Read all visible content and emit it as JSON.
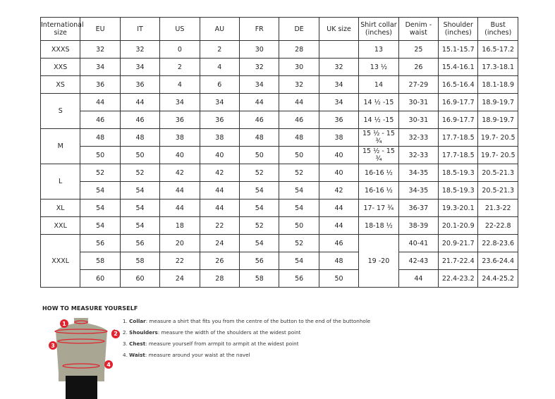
{
  "headers": [
    "International size",
    "EU",
    "IT",
    "US",
    "AU",
    "FR",
    "DE",
    "UK size",
    "Shirt collar (inches)",
    "Denim - waist",
    "Shoulder (inches)",
    "Bust (inches)"
  ],
  "groups": [
    {
      "size": "XXXS",
      "rows": [
        [
          "32",
          "32",
          "0",
          "2",
          "30",
          "28",
          "",
          "13",
          "25",
          "15.1-15.7",
          "16.5-17.2"
        ]
      ]
    },
    {
      "size": "XXS",
      "rows": [
        [
          "34",
          "34",
          "2",
          "4",
          "32",
          "30",
          "32",
          "13 ½",
          "26",
          "15.4-16.1",
          "17.3-18.1"
        ]
      ]
    },
    {
      "size": "XS",
      "rows": [
        [
          "36",
          "36",
          "4",
          "6",
          "34",
          "32",
          "34",
          "14",
          "27-29",
          "16.5-16.4",
          "18.1-18.9"
        ]
      ]
    },
    {
      "size": "S",
      "rows": [
        [
          "44",
          "44",
          "34",
          "34",
          "44",
          "44",
          "34",
          "14 ½ -15",
          "30-31",
          "16.9-17.7",
          "18.9-19.7"
        ],
        [
          "46",
          "46",
          "36",
          "36",
          "46",
          "46",
          "36",
          "14 ½ -15",
          "30-31",
          "16.9-17.7",
          "18.9-19.7"
        ]
      ]
    },
    {
      "size": "M",
      "rows": [
        [
          "48",
          "48",
          "38",
          "38",
          "48",
          "48",
          "38",
          "15 ½ - 15 ¾",
          "32-33",
          "17.7-18.5",
          "19.7- 20.5"
        ],
        [
          "50",
          "50",
          "40",
          "40",
          "50",
          "50",
          "40",
          "15 ½ - 15 ¾",
          "32-33",
          "17.7-18.5",
          "19.7- 20.5"
        ]
      ]
    },
    {
      "size": "L",
      "rows": [
        [
          "52",
          "52",
          "42",
          "42",
          "52",
          "52",
          "40",
          "16-16 ½",
          "34-35",
          "18.5-19.3",
          "20.5-21.3"
        ],
        [
          "54",
          "54",
          "44",
          "44",
          "54",
          "54",
          "42",
          "16-16 ½",
          "34-35",
          "18.5-19.3",
          "20.5-21.3"
        ]
      ]
    },
    {
      "size": "XL",
      "rows": [
        [
          "54",
          "54",
          "44",
          "44",
          "54",
          "54",
          "44",
          "17- 17 ¾",
          "36-37",
          "19.3-20.1",
          "21.3-22"
        ]
      ]
    },
    {
      "size": "XXL",
      "rows": [
        [
          "54",
          "54",
          "18",
          "22",
          "52",
          "50",
          "44",
          "18-18 ½",
          "38-39",
          "20.1-20.9",
          "22-22.8"
        ]
      ]
    },
    {
      "size": "XXXL",
      "shared_collar": "19 -20",
      "rows": [
        [
          "56",
          "56",
          "20",
          "24",
          "54",
          "52",
          "46",
          "",
          "40-41",
          "20.9-21.7",
          "22.8-23.6"
        ],
        [
          "58",
          "58",
          "22",
          "26",
          "56",
          "54",
          "48",
          "",
          "42-43",
          "21.7-22.4",
          "23.6-24.4"
        ],
        [
          "60",
          "60",
          "24",
          "28",
          "58",
          "56",
          "50",
          "",
          "44",
          "22.4-23.2",
          "24.4-25.2"
        ]
      ]
    }
  ],
  "measure": {
    "title": "HOW TO MEASURE YOURSELF",
    "steps": [
      {
        "num": "1.",
        "label": "Collar",
        "text": ": measure a shirt that fits you from the centre of the button to the end of the buttonhole"
      },
      {
        "num": "2.",
        "label": "Shoulders",
        "text": ": measure the width of the shoulders at the widest point"
      },
      {
        "num": "3.",
        "label": "Chest",
        "text": ": measure yourself from armpit to armpit at the widest point"
      },
      {
        "num": "4.",
        "label": "Waist",
        "text": ": measure around your waist at the navel"
      }
    ],
    "markers": [
      "1",
      "2",
      "3",
      "4"
    ],
    "colors": {
      "marker": "#e0242f",
      "body": "#a9a793",
      "pants": "#111111"
    }
  }
}
